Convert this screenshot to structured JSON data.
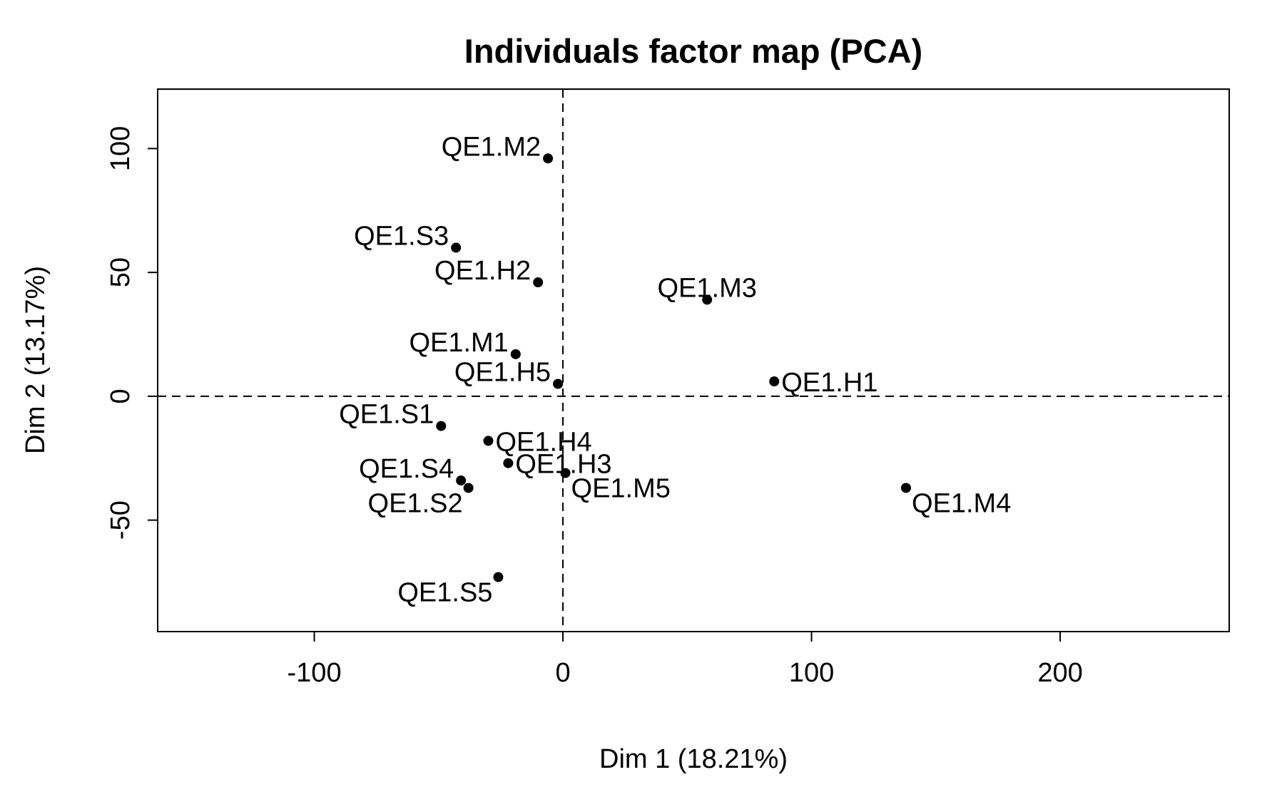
{
  "chart_data": {
    "type": "scatter",
    "title": "Individuals factor map (PCA)",
    "xlabel": "Dim 1 (18.21%)",
    "ylabel": "Dim 2 (13.17%)",
    "xlim": [
      -163,
      268
    ],
    "ylim": [
      -95,
      124
    ],
    "x_ticks": [
      -100,
      0,
      100,
      200
    ],
    "y_ticks": [
      -50,
      0,
      50,
      100
    ],
    "x_tick_labels": [
      "-100",
      "0",
      "100",
      "200"
    ],
    "y_tick_labels": [
      "-50",
      "0",
      "50",
      "100"
    ],
    "reference_lines": [
      {
        "axis": "x",
        "value": 0,
        "style": "dashed"
      },
      {
        "axis": "y",
        "value": 0,
        "style": "dashed"
      }
    ],
    "grid": false,
    "legend": "none",
    "colors": {
      "point": "#000000",
      "axis": "#000000"
    },
    "points": [
      {
        "label": "QE1.M2",
        "x": -6,
        "y": 96,
        "label_side": "left"
      },
      {
        "label": "QE1.S3",
        "x": -43,
        "y": 60,
        "label_side": "left"
      },
      {
        "label": "QE1.H2",
        "x": -10,
        "y": 46,
        "label_side": "left"
      },
      {
        "label": "QE1.M3",
        "x": 58,
        "y": 39,
        "label_side": "center"
      },
      {
        "label": "QE1.M1",
        "x": -19,
        "y": 17,
        "label_side": "left"
      },
      {
        "label": "QE1.H5",
        "x": -2,
        "y": 5,
        "label_side": "left"
      },
      {
        "label": "QE1.H1",
        "x": 85,
        "y": 6,
        "label_side": "right"
      },
      {
        "label": "QE1.S1",
        "x": -49,
        "y": -12,
        "label_side": "left"
      },
      {
        "label": "QE1.H4",
        "x": -30,
        "y": -18,
        "label_side": "right"
      },
      {
        "label": "QE1.H3",
        "x": -22,
        "y": -27,
        "label_side": "right"
      },
      {
        "label": "QE1.M5",
        "x": 1,
        "y": -31,
        "label_side": "below-right"
      },
      {
        "label": "QE1.S4",
        "x": -41,
        "y": -34,
        "label_side": "left"
      },
      {
        "label": "QE1.S2",
        "x": -38,
        "y": -37,
        "label_side": "below-left"
      },
      {
        "label": "QE1.M4",
        "x": 138,
        "y": -37,
        "label_side": "below-right"
      },
      {
        "label": "QE1.S5",
        "x": -26,
        "y": -73,
        "label_side": "below-left"
      }
    ]
  }
}
